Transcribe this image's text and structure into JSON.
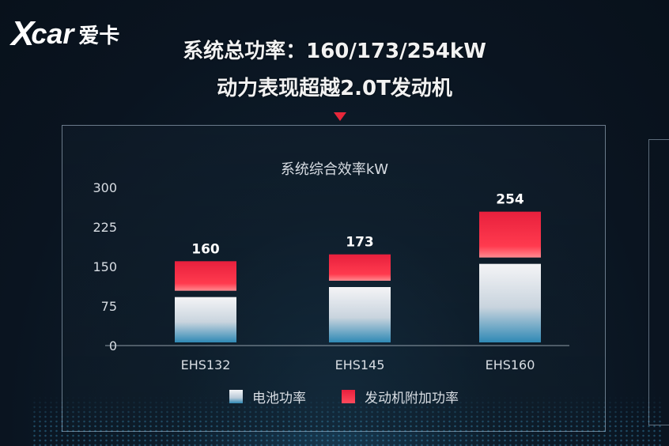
{
  "logo": {
    "brand": "X",
    "brand_suffix": "car",
    "brand_cn": "爱卡"
  },
  "headline": {
    "line1": "系统总功率：160/173/254kW",
    "line2": "动力表现超越2.0T发动机"
  },
  "colors": {
    "engine": "#e8203d",
    "battery_top": "#f4f4f6",
    "battery_bottom": "#2f89b5",
    "pointer": "#e8273a",
    "axis_text": "#d8dde3"
  },
  "chart_data": {
    "type": "bar",
    "stacked": true,
    "title": "系统综合效率kW",
    "categories": [
      "EHS132",
      "EHS145",
      "EHS160"
    ],
    "series": [
      {
        "name": "电池功率",
        "values": [
          92,
          111,
          155
        ]
      },
      {
        "name": "发动机附加功率",
        "values": [
          68,
          62,
          99
        ]
      }
    ],
    "totals": [
      "160",
      "173",
      "254"
    ],
    "yticks": [
      "300",
      "225",
      "150",
      "75",
      "0"
    ],
    "ylim": [
      0,
      300
    ],
    "grid": false,
    "legend_position": "bottom"
  }
}
